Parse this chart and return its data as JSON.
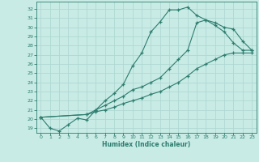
{
  "xlabel": "Humidex (Indice chaleur)",
  "bg_color": "#c8ebe6",
  "grid_color": "#b0d8d2",
  "line_color": "#2e7d6e",
  "xlim": [
    -0.5,
    23.5
  ],
  "ylim": [
    18.5,
    32.8
  ],
  "xticks": [
    0,
    1,
    2,
    3,
    4,
    5,
    6,
    7,
    8,
    9,
    10,
    11,
    12,
    13,
    14,
    15,
    16,
    17,
    18,
    19,
    20,
    21,
    22,
    23
  ],
  "yticks": [
    19,
    20,
    21,
    22,
    23,
    24,
    25,
    26,
    27,
    28,
    29,
    30,
    31,
    32
  ],
  "line1_x": [
    0,
    1,
    2,
    3,
    4,
    5,
    6,
    7,
    8,
    9,
    10,
    11,
    12,
    13,
    14,
    15,
    16,
    17,
    18,
    19,
    20,
    21,
    22,
    23
  ],
  "line1_y": [
    20.2,
    19.0,
    18.7,
    19.4,
    20.1,
    19.9,
    21.0,
    22.0,
    22.8,
    23.8,
    25.8,
    27.2,
    29.5,
    30.6,
    31.9,
    31.9,
    32.2,
    31.3,
    30.8,
    30.2,
    29.5,
    28.3,
    27.5,
    27.5
  ],
  "line2_x": [
    0,
    5,
    6,
    7,
    8,
    9,
    10,
    11,
    12,
    13,
    14,
    15,
    16,
    17,
    18,
    19,
    20,
    21,
    22,
    23
  ],
  "line2_y": [
    20.2,
    20.5,
    21.0,
    21.5,
    22.0,
    22.5,
    23.2,
    23.5,
    24.0,
    24.5,
    25.5,
    26.5,
    27.5,
    30.5,
    30.8,
    30.5,
    30.0,
    29.8,
    28.5,
    27.5
  ],
  "line3_x": [
    0,
    5,
    6,
    7,
    8,
    9,
    10,
    11,
    12,
    13,
    14,
    15,
    16,
    17,
    18,
    19,
    20,
    21,
    22,
    23
  ],
  "line3_y": [
    20.2,
    20.5,
    20.8,
    21.0,
    21.3,
    21.7,
    22.0,
    22.3,
    22.7,
    23.0,
    23.5,
    24.0,
    24.7,
    25.5,
    26.0,
    26.5,
    27.0,
    27.2,
    27.2,
    27.2
  ]
}
